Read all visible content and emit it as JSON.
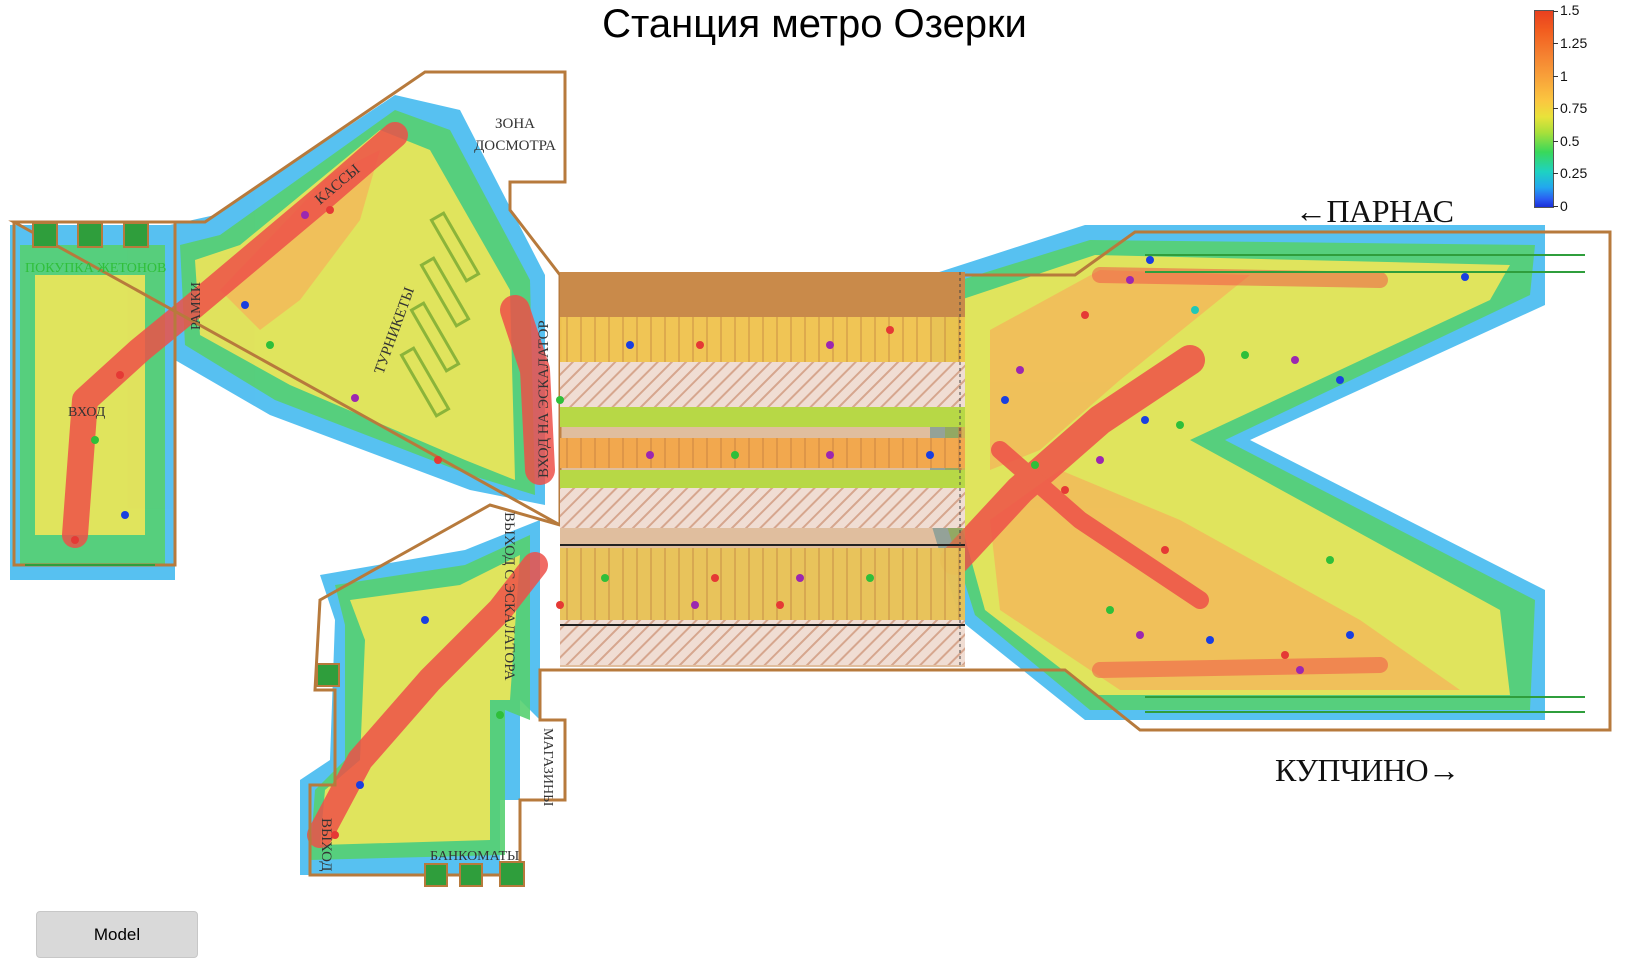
{
  "title": "Станция метро Озерки",
  "legend": {
    "ticks": [
      "1.5",
      "1.25",
      "1",
      "0.75",
      "0.5",
      "0.25",
      "0"
    ]
  },
  "directions": {
    "parnas": "←ПАРНАС",
    "kupchino": "КУПЧИНО→"
  },
  "zones": {
    "zona": "ЗОНА",
    "dosmotra": "ДОСМОТРА",
    "kassy": "КАССЫ",
    "pokupka": "ПОКУПКА ЖЕТОНОВ",
    "ramki": "РАМКИ",
    "vhod": "ВХОД",
    "turnikety": "ТУРНИКЕТЫ",
    "vhod_esk": "ВХОД НА ЭСКАЛАТОР",
    "vyhod_esk": "ВЫХОД С ЭСКАЛАТОРА",
    "magaziny": "МАГАЗИНЫ",
    "vyhod": "ВЫХОД",
    "bankomaty": "БАНКОМАТЫ"
  },
  "model_button": "Model",
  "colors": {
    "wall": "#b77a3c",
    "train": "#c98a4a",
    "high": "#f0504a",
    "mid": "#f6cf63",
    "low": "#5fd47a",
    "min": "#34b6f0"
  }
}
